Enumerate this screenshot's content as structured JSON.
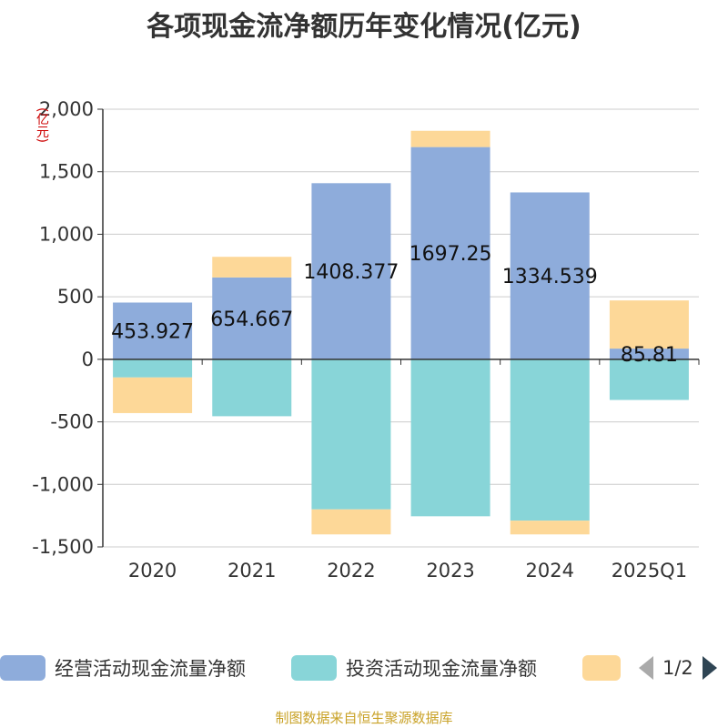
{
  "title": "各项现金流净额历年变化情况(亿元)",
  "unit": "(亿元)",
  "source": "制图数据来自恒生聚源数据库",
  "legend": {
    "page": "1/2",
    "items": [
      {
        "label": "经营活动现金流量净额",
        "color": "#8eacdb"
      },
      {
        "label": "投资活动现金流量净额",
        "color": "#88d5d8"
      },
      {
        "label": "",
        "color": "#fdd898"
      }
    ]
  },
  "chart_data": {
    "type": "bar",
    "stacked": true,
    "categories": [
      "2020",
      "2021",
      "2022",
      "2023",
      "2024",
      "2025Q1"
    ],
    "ylim": [
      -1500,
      2000
    ],
    "yticks": [
      -1500,
      -1000,
      -500,
      0,
      500,
      1000,
      1500,
      2000
    ],
    "ytick_labels": [
      "-1,500",
      "-1,000",
      "-500",
      "0",
      "500",
      "1,000",
      "1,500",
      "2,000"
    ],
    "grid": true,
    "legend_position": "bottom",
    "series": [
      {
        "name": "经营活动现金流量净额",
        "color": "#8eacdb",
        "values": [
          453.927,
          654.667,
          1408.377,
          1697.25,
          1334.539,
          85.81
        ],
        "labels": [
          "453.927",
          "654.667",
          "1408.377",
          "1697.25",
          "1334.539",
          "85.81"
        ]
      },
      {
        "name": "投资活动现金流量净额",
        "color": "#88d5d8",
        "values": [
          -145,
          -455,
          -1200,
          -1255,
          -1290,
          -325
        ]
      },
      {
        "color": "#fdd898",
        "values": [
          -285,
          165,
          -200,
          130,
          -110,
          385
        ]
      }
    ]
  }
}
